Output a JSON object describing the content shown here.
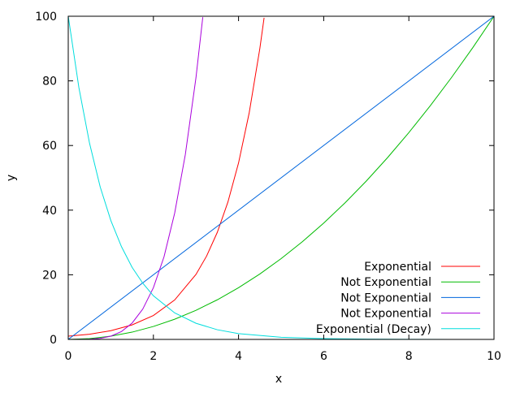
{
  "chart_data": {
    "type": "line",
    "title": "",
    "xlabel": "x",
    "ylabel": "y",
    "xlim": [
      0,
      10
    ],
    "ylim": [
      0,
      100
    ],
    "xticks": [
      0,
      2,
      4,
      6,
      8,
      10
    ],
    "yticks": [
      0,
      20,
      40,
      60,
      80,
      100
    ],
    "grid": false,
    "legend_position": "bottom-right",
    "series": [
      {
        "name": "Exponential",
        "color": "#ff0000",
        "x": [
          0,
          0.5,
          1,
          1.5,
          2,
          2.5,
          3,
          3.25,
          3.5,
          3.75,
          4,
          4.25,
          4.5,
          4.6
        ],
        "y": [
          1,
          1.6,
          2.7,
          4.5,
          7.4,
          12.2,
          20.1,
          25.8,
          33.1,
          42.5,
          54.6,
          70.1,
          90.0,
          99.5
        ]
      },
      {
        "name": "Not Exponential",
        "color": "#00bb00",
        "x": [
          0,
          0.5,
          1,
          1.5,
          2,
          2.5,
          3,
          3.5,
          4,
          4.5,
          5,
          5.5,
          6,
          6.5,
          7,
          7.5,
          8,
          8.5,
          9,
          9.5,
          10
        ],
        "y": [
          0,
          0.25,
          1,
          2.25,
          4,
          6.25,
          9,
          12.25,
          16,
          20.25,
          25,
          30.25,
          36,
          42.25,
          49,
          56.25,
          64,
          72.25,
          81,
          90.25,
          100
        ]
      },
      {
        "name": "Not Exponential",
        "color": "#0066dd",
        "x": [
          0,
          10
        ],
        "y": [
          0,
          100
        ]
      },
      {
        "name": "Not Exponential",
        "color": "#aa00dd",
        "x": [
          0,
          0.5,
          0.75,
          1,
          1.25,
          1.5,
          1.75,
          2,
          2.25,
          2.5,
          2.75,
          3,
          3.16
        ],
        "y": [
          0,
          0.06,
          0.32,
          1,
          2.44,
          5.06,
          9.38,
          16,
          25.6,
          39.1,
          57.2,
          81,
          99.7
        ]
      },
      {
        "name": "Exponential (Decay)",
        "color": "#00dddd",
        "x": [
          0,
          0.25,
          0.5,
          0.75,
          1,
          1.25,
          1.5,
          1.75,
          2,
          2.5,
          3,
          3.5,
          4,
          5,
          6,
          7,
          8,
          9,
          10
        ],
        "y": [
          100,
          77.9,
          60.7,
          47.2,
          36.8,
          28.7,
          22.3,
          17.4,
          13.5,
          8.2,
          5.0,
          3.0,
          1.8,
          0.67,
          0.25,
          0.09,
          0.03,
          0.01,
          0.005
        ]
      }
    ]
  }
}
